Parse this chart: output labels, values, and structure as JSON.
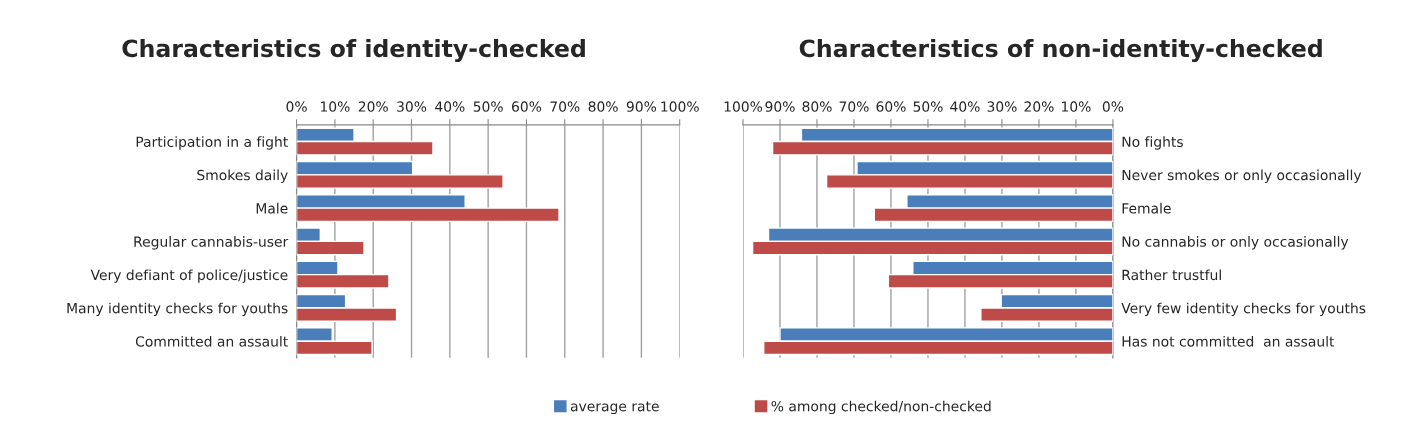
{
  "chart_data": [
    {
      "type": "bar",
      "orientation": "horizontal",
      "title": "Characteristics of identity-checked",
      "categories": [
        "Participation in a fight",
        "Smokes daily",
        "Male",
        "Regular cannabis-user",
        "Very defiant of police/justice",
        "Many identity checks for youths",
        "Committed an assault"
      ],
      "series": [
        {
          "name": "average rate",
          "color": "#4a7ebb",
          "values": [
            15.0,
            30.3,
            44.0,
            6.2,
            10.8,
            12.8,
            9.3
          ]
        },
        {
          "color": "#be4b48",
          "values": [
            35.6,
            53.9,
            68.5,
            17.6,
            24.1,
            26.1,
            19.7
          ]
        }
      ],
      "xlim": [
        0,
        100
      ],
      "xticks": [
        {
          "value": 0,
          "label": "0%"
        },
        {
          "value": 10,
          "label": "10%"
        },
        {
          "value": 20,
          "label": "20%"
        },
        {
          "value": 30,
          "label": "30%"
        },
        {
          "value": 40,
          "label": "40%"
        },
        {
          "value": 50,
          "label": "50%"
        },
        {
          "value": 60,
          "label": "60%"
        },
        {
          "value": 70,
          "label": "70%"
        },
        {
          "value": 80,
          "label": "80%"
        },
        {
          "value": 90,
          "label": "90%"
        },
        {
          "value": 100,
          "label": "100%"
        }
      ],
      "grid": "x",
      "legend": "bottom"
    },
    {
      "type": "bar",
      "orientation": "horizontal",
      "title": "Characteristics of non-identity-checked",
      "categories": [
        "No fights",
        "Never smokes or only occasionally",
        "Female",
        "No cannabis or only occasionally",
        "Rather trustful",
        "Very few identity checks for youths",
        "Has not committed  an assault"
      ],
      "series": [
        {
          "color": "#4a7ebb",
          "values": [
            84.2,
            69.2,
            55.7,
            93.1,
            54.1,
            30.2,
            90.0
          ]
        },
        {
          "name": "% among checked/non-checked",
          "color": "#be4b48",
          "values": [
            92.0,
            77.4,
            64.5,
            97.4,
            60.7,
            35.7,
            94.4
          ]
        }
      ],
      "xlim": [
        100,
        0
      ],
      "xticks": [
        {
          "value": 100,
          "label": "100%"
        },
        {
          "value": 90,
          "label": "90%"
        },
        {
          "value": 80,
          "label": "80%"
        },
        {
          "value": 70,
          "label": "70%"
        },
        {
          "value": 60,
          "label": "60%"
        },
        {
          "value": 50,
          "label": "50%"
        },
        {
          "value": 40,
          "label": "40%"
        },
        {
          "value": 30,
          "label": "30%"
        },
        {
          "value": 20,
          "label": "20%"
        },
        {
          "value": 10,
          "label": "10%"
        },
        {
          "value": 0,
          "label": "0%"
        }
      ],
      "grid": "x",
      "legend": "bottom"
    }
  ]
}
